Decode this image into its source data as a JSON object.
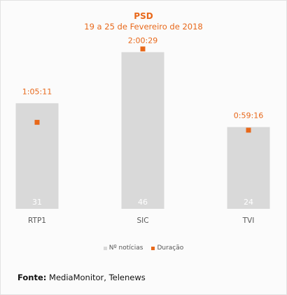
{
  "colors": {
    "bar": "#d9d9d9",
    "marker": "#e8681a",
    "bar_value_text": "#ffffff",
    "duration_label": "#e8681a",
    "category_label": "#595959"
  },
  "chart_data": {
    "type": "bar",
    "title": "PSD",
    "subtitle": "19 a 25 de Fevereiro de 2018",
    "categories": [
      "RTP1",
      "SIC",
      "TVI"
    ],
    "series": [
      {
        "name": "Nº notícias",
        "kind": "bar",
        "values": [
          31,
          46,
          24
        ]
      },
      {
        "name": "Duração",
        "kind": "marker",
        "values_seconds": [
          3911,
          7229,
          3556
        ],
        "labels": [
          "1:05:11",
          "2:00:29",
          "0:59:16"
        ]
      }
    ],
    "ylim": [
      0,
      50
    ],
    "y2lim_seconds": [
      0,
      7700
    ],
    "grid": false,
    "legend_position": "bottom"
  },
  "legend": {
    "items": [
      {
        "label": "Nº notícias",
        "color": "#d9d9d9"
      },
      {
        "label": "Duração",
        "color": "#e8681a"
      }
    ]
  },
  "source": {
    "label": "Fonte:",
    "text": " MediaMonitor, Telenews"
  }
}
